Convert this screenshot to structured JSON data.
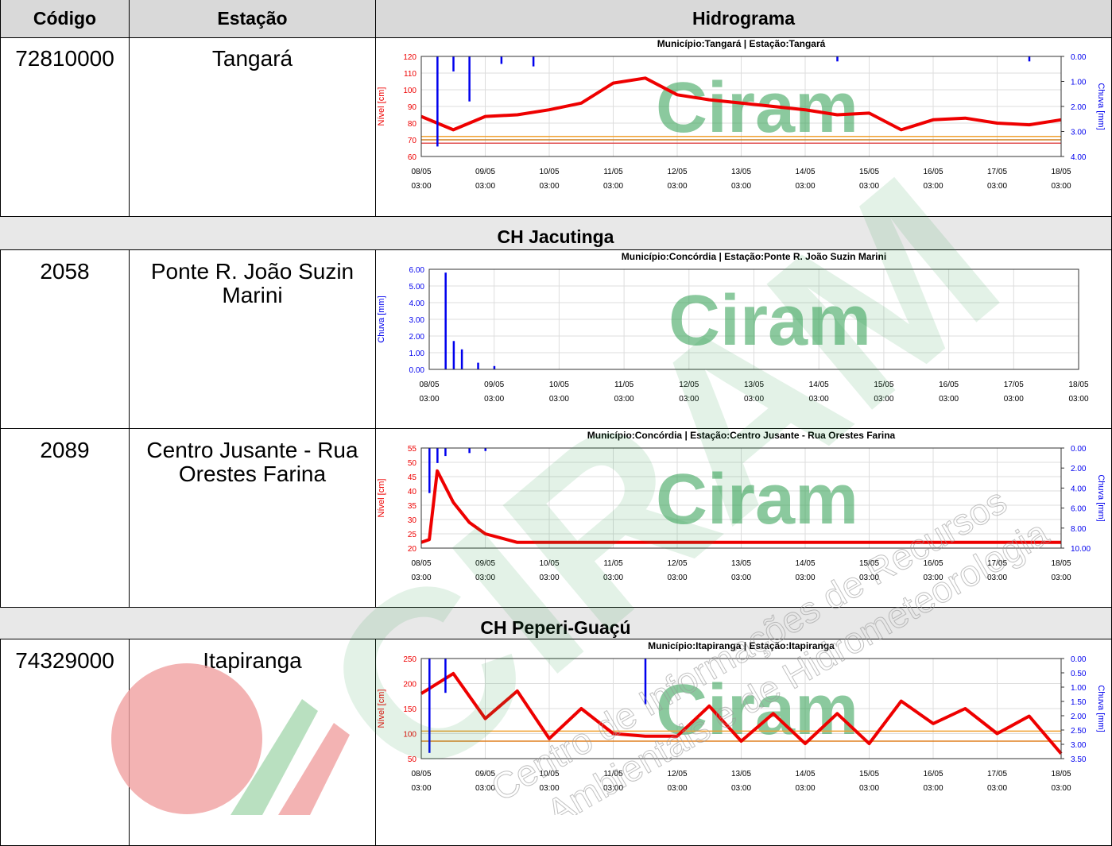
{
  "table": {
    "header": [
      "Código",
      "Estação",
      "Hidrograma"
    ],
    "rows": [
      {
        "code": "72810000",
        "station": "Tangará"
      },
      {
        "section": "CH Jacutinga"
      },
      {
        "code": "2058",
        "station": "Ponte R. João Suzin Marini"
      },
      {
        "code": "2089",
        "station": "Centro Jusante - Rua Orestes Farina"
      },
      {
        "section": "CH Peperi-Guaçú"
      },
      {
        "code": "74329000",
        "station": "Itapiranga"
      }
    ]
  },
  "watermark": {
    "brand": "CIRAM",
    "line1": "Centro de Informações de Recursos",
    "line2": "Ambientais e de Hidrometeorologia"
  },
  "chart_data": [
    {
      "type": "line",
      "title": "Município:Tangará | Estação:Tangará",
      "ylabel": "Nível [cm]",
      "y2label": "Chuva [mm]",
      "watermark": "Ciram",
      "ylim": [
        60,
        120
      ],
      "yticks": [
        60,
        70,
        80,
        90,
        100,
        110,
        120
      ],
      "y2lim": [
        4,
        0
      ],
      "y2ticks": [
        {
          "value": 0,
          "label": "0.00"
        },
        {
          "value": 1,
          "label": "1.00"
        },
        {
          "value": 2,
          "label": "2.00"
        },
        {
          "value": 3,
          "label": "3.00"
        },
        {
          "value": 4,
          "label": "4.00"
        }
      ],
      "xticks": [
        {
          "date": "08/05",
          "time": "03:00"
        },
        {
          "date": "09/05",
          "time": "03:00"
        },
        {
          "date": "10/05",
          "time": "03:00"
        },
        {
          "date": "11/05",
          "time": "03:00"
        },
        {
          "date": "12/05",
          "time": "03:00"
        },
        {
          "date": "13/05",
          "time": "03:00"
        },
        {
          "date": "14/05",
          "time": "03:00"
        },
        {
          "date": "15/05",
          "time": "03:00"
        },
        {
          "date": "16/05",
          "time": "03:00"
        },
        {
          "date": "17/05",
          "time": "03:00"
        },
        {
          "date": "18/05",
          "time": "03:00"
        }
      ],
      "grid": true,
      "hlines": [
        {
          "value": 72,
          "color": "#f0a030"
        },
        {
          "value": 70,
          "color": "#d08020"
        },
        {
          "value": 68,
          "color": "#e05050"
        }
      ],
      "series": [
        {
          "type": "line",
          "axis": "y",
          "color": "#ee0000",
          "x": [
            "08/05 03:00",
            "08/05 15:00",
            "09/05 03:00",
            "09/05 15:00",
            "10/05 03:00",
            "10/05 15:00",
            "11/05 03:00",
            "11/05 15:00",
            "12/05 03:00",
            "12/05 15:00",
            "13/05 03:00",
            "13/05 15:00",
            "14/05 03:00",
            "14/05 15:00",
            "15/05 03:00",
            "15/05 15:00",
            "16/05 03:00",
            "16/05 15:00",
            "17/05 03:00",
            "17/05 15:00",
            "18/05 03:00"
          ],
          "values": [
            84,
            76,
            84,
            85,
            88,
            92,
            104,
            107,
            97,
            94,
            92,
            90,
            88,
            85,
            86,
            76,
            82,
            83,
            80,
            79,
            82
          ]
        },
        {
          "type": "bar",
          "axis": "y2",
          "color": "#0000ee",
          "x": [
            "08/05 09:00",
            "08/05 15:00",
            "08/05 21:00",
            "09/05 09:00",
            "09/05 21:00",
            "14/05 15:00",
            "17/05 15:00"
          ],
          "values": [
            3.6,
            0.6,
            1.8,
            0.3,
            0.4,
            0.2,
            0.2
          ]
        }
      ]
    },
    {
      "type": "bar",
      "title": "Município:Concórdia | Estação:Ponte R. João Suzin Marini",
      "ylabel": "Chuva [mm]",
      "watermark": "Ciram",
      "ylim": [
        0,
        6
      ],
      "yticks": [
        {
          "value": 0,
          "label": "0.00"
        },
        {
          "value": 1,
          "label": "1.00"
        },
        {
          "value": 2,
          "label": "2.00"
        },
        {
          "value": 3,
          "label": "3.00"
        },
        {
          "value": 4,
          "label": "4.00"
        },
        {
          "value": 5,
          "label": "5.00"
        },
        {
          "value": 6,
          "label": "6.00"
        }
      ],
      "xticks": [
        {
          "date": "08/05",
          "time": "03:00"
        },
        {
          "date": "09/05",
          "time": "03:00"
        },
        {
          "date": "10/05",
          "time": "03:00"
        },
        {
          "date": "11/05",
          "time": "03:00"
        },
        {
          "date": "12/05",
          "time": "03:00"
        },
        {
          "date": "13/05",
          "time": "03:00"
        },
        {
          "date": "14/05",
          "time": "03:00"
        },
        {
          "date": "15/05",
          "time": "03:00"
        },
        {
          "date": "16/05",
          "time": "03:00"
        },
        {
          "date": "17/05",
          "time": "03:00"
        },
        {
          "date": "18/05",
          "time": "03:00"
        }
      ],
      "grid": true,
      "series": [
        {
          "type": "bar",
          "axis": "y",
          "color": "#0000ee",
          "x": [
            "08/05 09:00",
            "08/05 12:00",
            "08/05 15:00",
            "08/05 21:00",
            "09/05 03:00"
          ],
          "values": [
            5.8,
            1.7,
            1.2,
            0.4,
            0.2
          ]
        }
      ]
    },
    {
      "type": "line",
      "title": "Município:Concórdia | Estação:Centro Jusante - Rua Orestes Farina",
      "ylabel": "Nível [cm]",
      "y2label": "Chuva [mm]",
      "watermark": "Ciram",
      "ylim": [
        20,
        55
      ],
      "yticks": [
        20,
        25,
        30,
        35,
        40,
        45,
        50,
        55
      ],
      "y2lim": [
        10,
        0
      ],
      "y2ticks": [
        {
          "value": 0,
          "label": "0.00"
        },
        {
          "value": 2,
          "label": "2.00"
        },
        {
          "value": 4,
          "label": "4.00"
        },
        {
          "value": 6,
          "label": "6.00"
        },
        {
          "value": 8,
          "label": "8.00"
        },
        {
          "value": 10,
          "label": "10.00"
        }
      ],
      "xticks": [
        {
          "date": "08/05",
          "time": "03:00"
        },
        {
          "date": "09/05",
          "time": "03:00"
        },
        {
          "date": "10/05",
          "time": "03:00"
        },
        {
          "date": "11/05",
          "time": "03:00"
        },
        {
          "date": "12/05",
          "time": "03:00"
        },
        {
          "date": "13/05",
          "time": "03:00"
        },
        {
          "date": "14/05",
          "time": "03:00"
        },
        {
          "date": "15/05",
          "time": "03:00"
        },
        {
          "date": "16/05",
          "time": "03:00"
        },
        {
          "date": "17/05",
          "time": "03:00"
        },
        {
          "date": "18/05",
          "time": "03:00"
        }
      ],
      "grid": true,
      "series": [
        {
          "type": "line",
          "axis": "y",
          "color": "#ee0000",
          "x": [
            "08/05 03:00",
            "08/05 06:00",
            "08/05 09:00",
            "08/05 15:00",
            "08/05 21:00",
            "09/05 03:00",
            "09/05 15:00",
            "11/05 03:00",
            "13/05 03:00",
            "15/05 03:00",
            "17/05 03:00",
            "18/05 03:00"
          ],
          "values": [
            22,
            23,
            47,
            36,
            29,
            25,
            22,
            22,
            22,
            22,
            22,
            22
          ]
        },
        {
          "type": "bar",
          "axis": "y2",
          "color": "#0000ee",
          "x": [
            "08/05 06:00",
            "08/05 09:00",
            "08/05 12:00",
            "08/05 21:00",
            "09/05 03:00"
          ],
          "values": [
            4.5,
            1.5,
            0.8,
            0.5,
            0.3
          ]
        }
      ]
    },
    {
      "type": "line",
      "title": "Município:Itapiranga | Estação:Itapiranga",
      "ylabel": "Nível [cm]",
      "y2label": "Chuva [mm]",
      "watermark": "Ciram",
      "ylim": [
        50,
        250
      ],
      "yticks": [
        50,
        100,
        150,
        200,
        250
      ],
      "y2lim": [
        3.5,
        0
      ],
      "y2ticks": [
        {
          "value": 0,
          "label": "0.00"
        },
        {
          "value": 0.5,
          "label": "0.50"
        },
        {
          "value": 1,
          "label": "1.00"
        },
        {
          "value": 1.5,
          "label": "1.50"
        },
        {
          "value": 2,
          "label": "2.00"
        },
        {
          "value": 2.5,
          "label": "2.50"
        },
        {
          "value": 3,
          "label": "3.00"
        },
        {
          "value": 3.5,
          "label": "3.50"
        }
      ],
      "xticks": [
        {
          "date": "08/05",
          "time": "03:00"
        },
        {
          "date": "09/05",
          "time": "03:00"
        },
        {
          "date": "10/05",
          "time": "03:00"
        },
        {
          "date": "11/05",
          "time": "03:00"
        },
        {
          "date": "12/05",
          "time": "03:00"
        },
        {
          "date": "13/05",
          "time": "03:00"
        },
        {
          "date": "14/05",
          "time": "03:00"
        },
        {
          "date": "15/05",
          "time": "03:00"
        },
        {
          "date": "16/05",
          "time": "03:00"
        },
        {
          "date": "17/05",
          "time": "03:00"
        },
        {
          "date": "18/05",
          "time": "03:00"
        }
      ],
      "grid": true,
      "hlines": [
        {
          "value": 105,
          "color": "#f0a030"
        },
        {
          "value": 85,
          "color": "#e08020"
        }
      ],
      "series": [
        {
          "type": "line",
          "axis": "y",
          "color": "#ee0000",
          "x": [
            "08/05 03:00",
            "08/05 15:00",
            "09/05 03:00",
            "09/05 15:00",
            "10/05 03:00",
            "10/05 15:00",
            "11/05 03:00",
            "11/05 15:00",
            "12/05 03:00",
            "12/05 15:00",
            "13/05 03:00",
            "13/05 15:00",
            "14/05 03:00",
            "14/05 15:00",
            "15/05 03:00",
            "15/05 15:00",
            "16/05 03:00",
            "16/05 15:00",
            "17/05 03:00",
            "17/05 15:00",
            "18/05 03:00"
          ],
          "values": [
            180,
            220,
            130,
            185,
            90,
            150,
            100,
            95,
            95,
            155,
            85,
            140,
            80,
            140,
            80,
            165,
            120,
            150,
            100,
            135,
            60
          ]
        },
        {
          "type": "bar",
          "axis": "y2",
          "color": "#0000ee",
          "x": [
            "08/05 06:00",
            "08/05 12:00",
            "11/05 15:00"
          ],
          "values": [
            3.3,
            1.2,
            1.6
          ]
        }
      ]
    }
  ]
}
